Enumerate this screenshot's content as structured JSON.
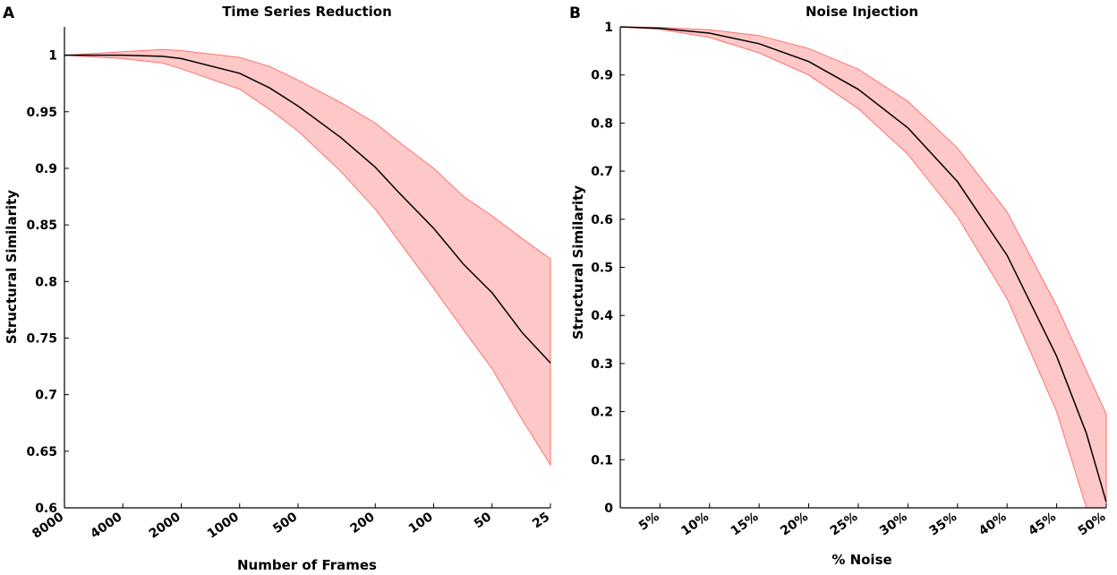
{
  "colors": {
    "band_fill": "#ffc8c8",
    "band_edge": "#ff7070",
    "mean_line": "#000000",
    "axis": "#000000"
  },
  "chart_data": [
    {
      "panel": "A",
      "type": "area",
      "title": "Time Series Reduction",
      "xlabel": "Number of Frames",
      "ylabel": "Structural Similarity",
      "x_scale": "log-reversed",
      "xlim": [
        8000,
        25
      ],
      "ylim": [
        0.6,
        1.025
      ],
      "xticks": [
        8000,
        4000,
        2000,
        1000,
        500,
        200,
        100,
        50,
        25
      ],
      "xtick_labels": [
        "8000",
        "4000",
        "2000",
        "1000",
        "500",
        "200",
        "100",
        "50",
        "25"
      ],
      "yticks": [
        0.6,
        0.65,
        0.7,
        0.75,
        0.8,
        0.85,
        0.9,
        0.95,
        1
      ],
      "ytick_labels": [
        "0.6",
        "0.65",
        "0.7",
        "0.75",
        "0.8",
        "0.85",
        "0.9",
        "0.95",
        "1"
      ],
      "x": [
        8000,
        4000,
        2500,
        2000,
        1000,
        700,
        500,
        300,
        200,
        150,
        100,
        70,
        50,
        35,
        25
      ],
      "mean": [
        1.0,
        1.0,
        0.999,
        0.997,
        0.984,
        0.971,
        0.955,
        0.927,
        0.901,
        0.878,
        0.847,
        0.815,
        0.79,
        0.755,
        0.728
      ],
      "upper": [
        1.0,
        1.003,
        1.005,
        1.004,
        0.998,
        0.99,
        0.978,
        0.958,
        0.94,
        0.923,
        0.9,
        0.875,
        0.858,
        0.838,
        0.82
      ],
      "lower": [
        1.0,
        0.997,
        0.993,
        0.988,
        0.97,
        0.952,
        0.933,
        0.897,
        0.864,
        0.835,
        0.794,
        0.757,
        0.723,
        0.678,
        0.638
      ]
    },
    {
      "panel": "B",
      "type": "area",
      "title": "Noise Injection",
      "xlabel": "% Noise",
      "ylabel": "Structural Similarity",
      "x_scale": "linear",
      "xlim": [
        1,
        50
      ],
      "ylim": [
        0,
        1
      ],
      "xticks": [
        5,
        10,
        15,
        20,
        25,
        30,
        35,
        40,
        45,
        50
      ],
      "xtick_labels": [
        "5%",
        "10%",
        "15%",
        "20%",
        "25%",
        "30%",
        "35%",
        "40%",
        "45%",
        "50%"
      ],
      "yticks": [
        0,
        0.1,
        0.2,
        0.3,
        0.4,
        0.5,
        0.6,
        0.7,
        0.8,
        0.9,
        1
      ],
      "ytick_labels": [
        "0",
        "0.1",
        "0.2",
        "0.3",
        "0.4",
        "0.5",
        "0.6",
        "0.7",
        "0.8",
        "0.9",
        "1"
      ],
      "x": [
        1,
        5,
        10,
        15,
        20,
        25,
        30,
        35,
        40,
        45,
        48,
        50
      ],
      "mean": [
        1.0,
        0.997,
        0.987,
        0.965,
        0.928,
        0.87,
        0.79,
        0.678,
        0.525,
        0.315,
        0.155,
        0.012
      ],
      "upper": [
        1.0,
        0.999,
        0.994,
        0.982,
        0.955,
        0.912,
        0.845,
        0.748,
        0.615,
        0.42,
        0.285,
        0.195
      ],
      "lower": [
        1.0,
        0.995,
        0.978,
        0.946,
        0.9,
        0.83,
        0.735,
        0.605,
        0.435,
        0.2,
        0.0,
        0.0
      ]
    }
  ]
}
